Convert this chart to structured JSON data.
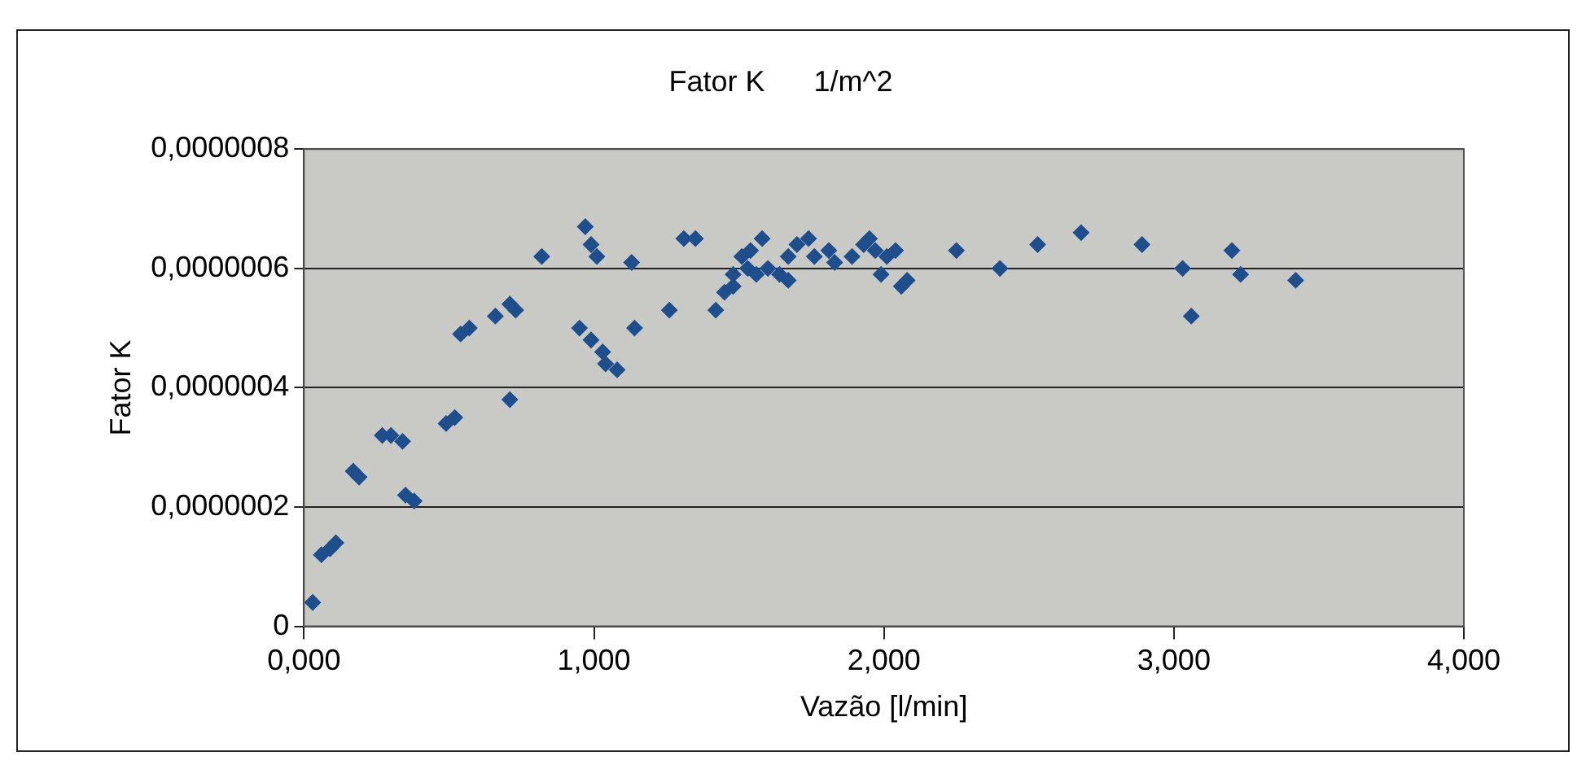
{
  "chart_data": {
    "type": "scatter",
    "title": "Fator K      1/m^2",
    "xlabel": "Vazão [l/min]",
    "ylabel": "Fator K",
    "marker": "diamond",
    "grid": "y",
    "legend": false,
    "xlim": [
      0,
      4
    ],
    "xticks": [
      {
        "value": 0,
        "label": "0,000"
      },
      {
        "value": 1,
        "label": "1,000"
      },
      {
        "value": 2,
        "label": "2,000"
      },
      {
        "value": 3,
        "label": "3,000"
      },
      {
        "value": 4,
        "label": "4,000"
      }
    ],
    "ylim": [
      0,
      8e-07
    ],
    "yticks": [
      {
        "value": 0,
        "label": "0"
      },
      {
        "value": 2e-07,
        "label": "0,0000002"
      },
      {
        "value": 4e-07,
        "label": "0,0000004"
      },
      {
        "value": 6e-07,
        "label": "0,0000006"
      },
      {
        "value": 8e-07,
        "label": "0,0000008"
      }
    ],
    "series": [
      {
        "color": "#1f4e8c",
        "x": [
          0.03,
          0.06,
          0.09,
          0.11,
          0.17,
          0.19,
          0.27,
          0.3,
          0.34,
          0.35,
          0.38,
          0.49,
          0.52,
          0.54,
          0.57,
          0.66,
          0.71,
          0.73,
          0.71,
          0.82,
          0.97,
          0.99,
          1.01,
          0.95,
          0.99,
          1.03,
          1.04,
          1.08,
          1.13,
          1.14,
          1.26,
          1.31,
          1.35,
          1.42,
          1.45,
          1.48,
          1.51,
          1.54,
          1.58,
          1.6,
          1.64,
          1.67,
          1.48,
          1.53,
          1.56,
          1.67,
          1.7,
          1.74,
          1.76,
          1.81,
          1.83,
          1.89,
          1.93,
          1.95,
          1.97,
          1.99,
          2.01,
          2.04,
          2.08,
          2.06,
          2.25,
          2.4,
          2.53,
          2.68,
          2.89,
          3.03,
          3.06,
          3.2,
          3.23,
          3.42
        ],
        "values": [
          4e-08,
          1.2e-07,
          1.3e-07,
          1.4e-07,
          2.6e-07,
          2.5e-07,
          3.2e-07,
          3.2e-07,
          3.1e-07,
          2.2e-07,
          2.1e-07,
          3.4e-07,
          3.5e-07,
          4.9e-07,
          5e-07,
          5.2e-07,
          5.4e-07,
          5.3e-07,
          3.8e-07,
          6.2e-07,
          6.7e-07,
          6.4e-07,
          6.2e-07,
          5e-07,
          4.8e-07,
          4.6e-07,
          4.4e-07,
          4.3e-07,
          6.1e-07,
          5e-07,
          5.3e-07,
          6.5e-07,
          6.5e-07,
          5.3e-07,
          5.6e-07,
          5.9e-07,
          6.2e-07,
          6.3e-07,
          6.5e-07,
          6e-07,
          5.9e-07,
          5.8e-07,
          5.7e-07,
          6e-07,
          5.9e-07,
          6.2e-07,
          6.4e-07,
          6.5e-07,
          6.2e-07,
          6.3e-07,
          6.1e-07,
          6.2e-07,
          6.4e-07,
          6.5e-07,
          6.3e-07,
          5.9e-07,
          6.2e-07,
          6.3e-07,
          5.8e-07,
          5.7e-07,
          6.3e-07,
          6e-07,
          6.4e-07,
          6.6e-07,
          6.4e-07,
          6e-07,
          5.2e-07,
          6.3e-07,
          5.9e-07,
          5.8e-07
        ]
      }
    ]
  }
}
